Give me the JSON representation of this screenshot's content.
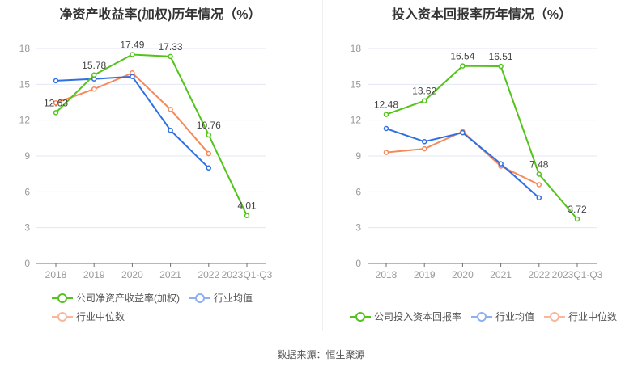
{
  "source": "数据来源：恒生聚源",
  "chart_data": [
    {
      "type": "line",
      "title": "净资产收益率(加权)历年情况（%）",
      "categories": [
        "2018",
        "2019",
        "2020",
        "2021",
        "2022",
        "2023Q1-Q3"
      ],
      "ylim": [
        0,
        18
      ],
      "yticks": [
        0,
        3,
        6,
        9,
        12,
        15,
        18
      ],
      "grid": true,
      "legend_position": "bottom",
      "series": [
        {
          "name": "公司净资产收益率(加权)",
          "color": "#52c41a",
          "values": [
            12.63,
            15.78,
            17.49,
            17.33,
            10.76,
            4.01
          ],
          "labels": [
            "12.63",
            "15.78",
            "17.49",
            "17.33",
            "10.76",
            "4.01"
          ]
        },
        {
          "name": "行业均值",
          "color": "#2f6fe4",
          "values": [
            15.3,
            15.45,
            15.65,
            11.15,
            8.0,
            null
          ]
        },
        {
          "name": "行业中位数",
          "color": "#f5895a",
          "values": [
            13.45,
            14.6,
            15.95,
            12.9,
            9.2,
            null
          ]
        }
      ]
    },
    {
      "type": "line",
      "title": "投入资本回报率历年情况（%）",
      "categories": [
        "2018",
        "2019",
        "2020",
        "2021",
        "2022",
        "2023Q1-Q3"
      ],
      "ylim": [
        0,
        18
      ],
      "yticks": [
        0,
        3,
        6,
        9,
        12,
        15,
        18
      ],
      "grid": true,
      "legend_position": "bottom",
      "series": [
        {
          "name": "公司投入资本回报率",
          "color": "#52c41a",
          "values": [
            12.48,
            13.62,
            16.54,
            16.51,
            7.48,
            3.72
          ],
          "labels": [
            "12.48",
            "13.62",
            "16.54",
            "16.51",
            "7.48",
            "3.72"
          ]
        },
        {
          "name": "行业均值",
          "color": "#2f6fe4",
          "values": [
            11.3,
            10.2,
            10.95,
            8.35,
            5.5,
            null
          ]
        },
        {
          "name": "行业中位数",
          "color": "#f5895a",
          "values": [
            9.3,
            9.6,
            11.05,
            8.15,
            6.6,
            null
          ]
        }
      ]
    }
  ]
}
